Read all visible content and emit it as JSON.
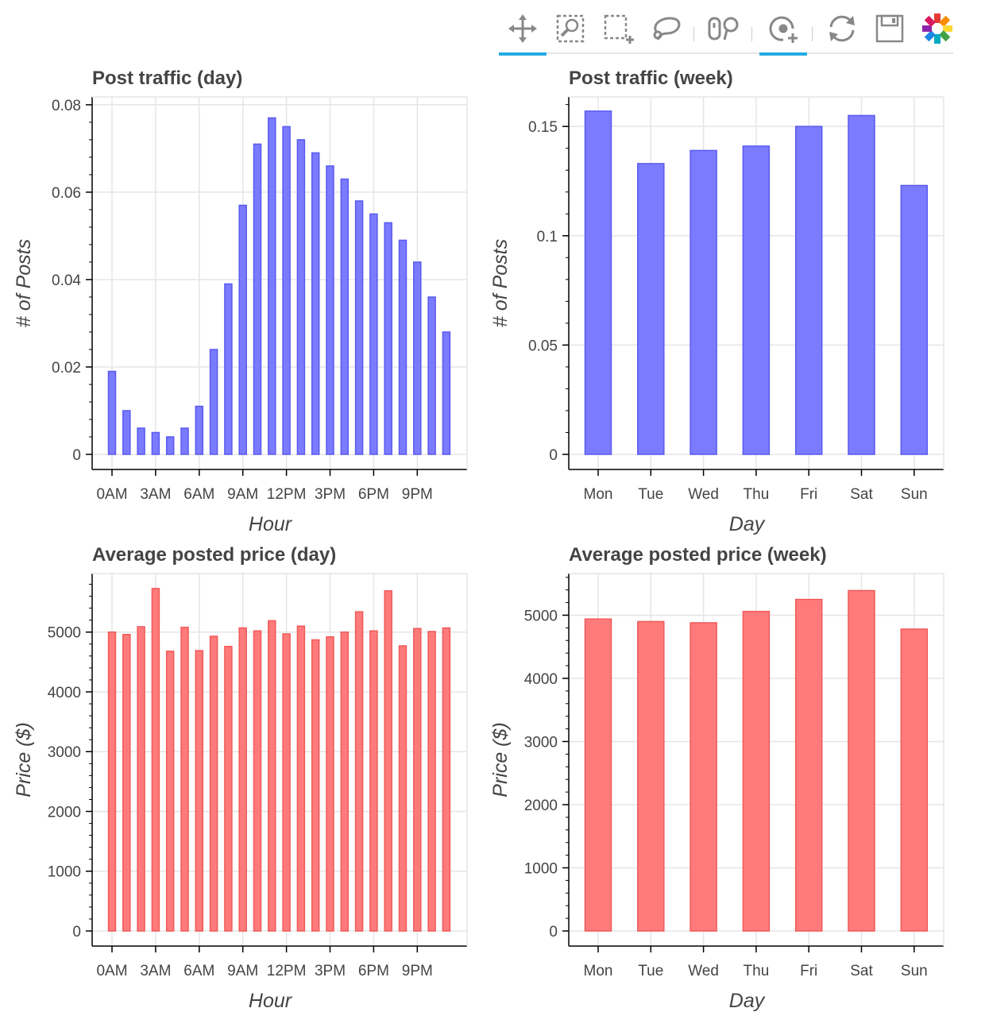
{
  "toolbar": {
    "tools": [
      {
        "name": "pan-icon",
        "active": true
      },
      {
        "name": "box-zoom-icon",
        "active": false
      },
      {
        "name": "box-select-icon",
        "active": false
      },
      {
        "name": "lasso-select-icon",
        "active": false
      },
      {
        "name": "resize-icon",
        "active": false
      },
      {
        "name": "wheel-zoom-icon",
        "active": true
      },
      {
        "name": "reset-icon",
        "active": false
      },
      {
        "name": "save-icon",
        "active": false
      },
      {
        "name": "bokeh-logo-icon",
        "active": false
      }
    ]
  },
  "colors": {
    "blue": "#7b7bff",
    "blue_stroke": "#5a5af0",
    "red": "#ff7b7b",
    "red_stroke": "#f05a5a"
  },
  "chart_data": [
    {
      "type": "bar",
      "title": "Post traffic (day)",
      "xlabel": "Hour",
      "ylabel": "# of Posts",
      "categories": [
        "0AM",
        "1AM",
        "2AM",
        "3AM",
        "4AM",
        "5AM",
        "6AM",
        "7AM",
        "8AM",
        "9AM",
        "10AM",
        "11AM",
        "12PM",
        "1PM",
        "2PM",
        "3PM",
        "4PM",
        "5PM",
        "6PM",
        "7PM",
        "8PM",
        "9PM",
        "10PM",
        "11PM"
      ],
      "tick_labels": [
        "0AM",
        "3AM",
        "6AM",
        "9AM",
        "12PM",
        "3PM",
        "6PM",
        "9PM"
      ],
      "values": [
        0.019,
        0.01,
        0.006,
        0.005,
        0.004,
        0.006,
        0.011,
        0.024,
        0.039,
        0.057,
        0.071,
        0.077,
        0.075,
        0.072,
        0.069,
        0.066,
        0.063,
        0.058,
        0.055,
        0.053,
        0.049,
        0.044,
        0.036,
        0.028
      ],
      "yticks": [
        "0",
        "0.02",
        "0.04",
        "0.06",
        "0.08"
      ],
      "ylim": [
        0,
        0.0818
      ],
      "color": "blue",
      "grid": true
    },
    {
      "type": "bar",
      "title": "Post traffic (week)",
      "xlabel": "Day",
      "ylabel": "# of Posts",
      "categories": [
        "Mon",
        "Tue",
        "Wed",
        "Thu",
        "Fri",
        "Sat",
        "Sun"
      ],
      "tick_labels": [
        "Mon",
        "Tue",
        "Wed",
        "Thu",
        "Fri",
        "Sat",
        "Sun"
      ],
      "values": [
        0.157,
        0.133,
        0.139,
        0.141,
        0.15,
        0.155,
        0.123
      ],
      "yticks": [
        "0",
        "0.05",
        "0.1",
        "0.15"
      ],
      "ylim": [
        0,
        0.1635
      ],
      "color": "blue",
      "grid": true
    },
    {
      "type": "bar",
      "title": "Average posted price (day)",
      "xlabel": "Hour",
      "ylabel": "Price ($)",
      "categories": [
        "0AM",
        "1AM",
        "2AM",
        "3AM",
        "4AM",
        "5AM",
        "6AM",
        "7AM",
        "8AM",
        "9AM",
        "10AM",
        "11AM",
        "12PM",
        "1PM",
        "2PM",
        "3PM",
        "4PM",
        "5PM",
        "6PM",
        "7PM",
        "8PM",
        "9PM",
        "10PM",
        "11PM"
      ],
      "tick_labels": [
        "0AM",
        "3AM",
        "6AM",
        "9AM",
        "12PM",
        "3PM",
        "6PM",
        "9PM"
      ],
      "values": [
        5000,
        4960,
        5090,
        5730,
        4680,
        5080,
        4690,
        4930,
        4760,
        5070,
        5020,
        5190,
        4970,
        5100,
        4870,
        4920,
        5000,
        5340,
        5020,
        5690,
        4770,
        5060,
        5010,
        5070
      ],
      "yticks": [
        "0",
        "1000",
        "2000",
        "3000",
        "4000",
        "5000"
      ],
      "ylim": [
        0,
        5980
      ],
      "color": "red",
      "grid": true
    },
    {
      "type": "bar",
      "title": "Average posted price (week)",
      "xlabel": "Day",
      "ylabel": "Price ($)",
      "categories": [
        "Mon",
        "Tue",
        "Wed",
        "Thu",
        "Fri",
        "Sat",
        "Sun"
      ],
      "tick_labels": [
        "Mon",
        "Tue",
        "Wed",
        "Thu",
        "Fri",
        "Sat",
        "Sun"
      ],
      "values": [
        4940,
        4900,
        4880,
        5060,
        5250,
        5390,
        4780
      ],
      "yticks": [
        "0",
        "1000",
        "2000",
        "3000",
        "4000",
        "5000"
      ],
      "ylim": [
        0,
        5660
      ],
      "color": "red",
      "grid": true
    }
  ]
}
